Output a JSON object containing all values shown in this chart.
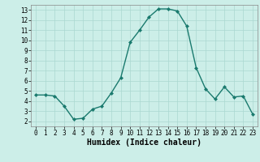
{
  "x": [
    0,
    1,
    2,
    3,
    4,
    5,
    6,
    7,
    8,
    9,
    10,
    11,
    12,
    13,
    14,
    15,
    16,
    17,
    18,
    19,
    20,
    21,
    22,
    23
  ],
  "y": [
    4.6,
    4.6,
    4.5,
    3.5,
    2.2,
    2.3,
    3.2,
    3.5,
    4.8,
    6.3,
    9.8,
    11.0,
    12.3,
    13.1,
    13.1,
    12.9,
    11.4,
    7.3,
    5.2,
    4.2,
    5.4,
    4.4,
    4.5,
    2.7
  ],
  "line_color": "#1a7a6e",
  "marker": "D",
  "markersize": 2.0,
  "linewidth": 1.0,
  "xlabel": "Humidex (Indice chaleur)",
  "xlabel_fontsize": 7,
  "xlim": [
    -0.5,
    23.5
  ],
  "ylim": [
    1.5,
    13.5
  ],
  "yticks": [
    2,
    3,
    4,
    5,
    6,
    7,
    8,
    9,
    10,
    11,
    12,
    13
  ],
  "xticks": [
    0,
    1,
    2,
    3,
    4,
    5,
    6,
    7,
    8,
    9,
    10,
    11,
    12,
    13,
    14,
    15,
    16,
    17,
    18,
    19,
    20,
    21,
    22,
    23
  ],
  "background_color": "#cceee8",
  "grid_color": "#aad8d0",
  "tick_fontsize": 5.5,
  "figure_width": 3.2,
  "figure_height": 2.0,
  "dpi": 100
}
